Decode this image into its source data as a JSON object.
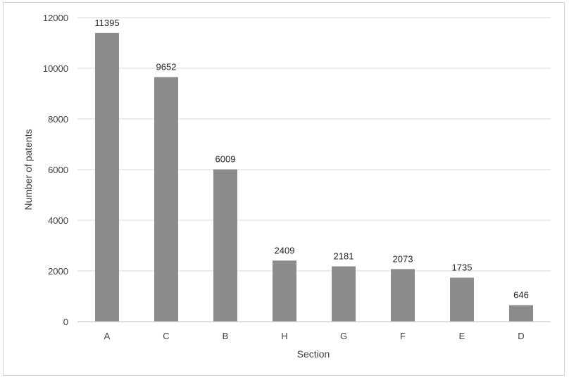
{
  "chart_data": {
    "type": "bar",
    "categories": [
      "A",
      "C",
      "B",
      "H",
      "G",
      "F",
      "E",
      "D"
    ],
    "values": [
      11395,
      9652,
      6009,
      2409,
      2181,
      2073,
      1735,
      646
    ],
    "data_labels": [
      "11395",
      "9652",
      "6009",
      "2409",
      "2181",
      "2073",
      "1735",
      "646"
    ],
    "title": "",
    "xlabel": "Section",
    "ylabel": "Number of patents",
    "ylim": [
      0,
      12000
    ],
    "yticks": [
      0,
      2000,
      4000,
      6000,
      8000,
      10000,
      12000
    ],
    "ytick_labels": [
      "0",
      "2000",
      "4000",
      "6000",
      "8000",
      "10000",
      "12000"
    ],
    "grid": "horizontal",
    "legend": "none",
    "colors": {
      "bar": "#8c8c8c",
      "grid": "#d9d9d9",
      "axis": "#bfbfbf",
      "frame": "#d0d0d0"
    }
  }
}
